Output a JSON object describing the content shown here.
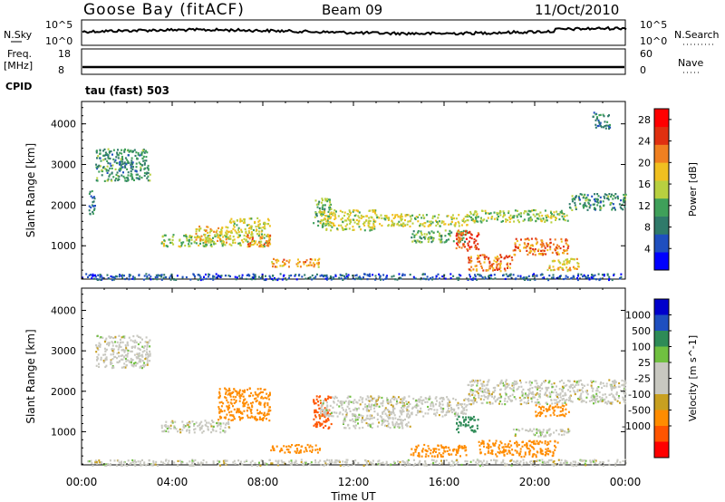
{
  "header": {
    "site": "Goose Bay (fitACF)",
    "beam": "Beam 09",
    "date": "11/Oct/2010"
  },
  "top_strip": {
    "left_label": "N.Sky",
    "right_label": "N.Search",
    "left_ticks": [
      "10^5",
      "10^0"
    ],
    "right_ticks": [
      "10^5",
      "10^0"
    ]
  },
  "freq_strip": {
    "left_label_1": "Freq.",
    "left_label_2": "[MHz]",
    "right_label": "Nave",
    "left_ticks": [
      "18",
      "8"
    ],
    "right_ticks": [
      "60",
      "0"
    ]
  },
  "cpid": {
    "label": "CPID",
    "value": "tau (fast) 503"
  },
  "colors": {
    "power": [
      "#0000ff",
      "#1f4fbf",
      "#2f7a6a",
      "#3fa05a",
      "#b8d040",
      "#f0c020",
      "#f08020",
      "#e03010",
      "#ff0000"
    ],
    "velocity": [
      "#ff0000",
      "#ff5500",
      "#ff8c00",
      "#c8a020",
      "#c8c8c0",
      "#c8c8c0",
      "#70c040",
      "#2e8b57",
      "#1f4fbf",
      "#0000cc"
    ]
  },
  "chart_data": [
    {
      "type": "heatmap",
      "title": "",
      "xlabel": "",
      "ylabel": "Slant Range [km]",
      "xlim": [
        "00:00",
        "24:00"
      ],
      "ylim": [
        180,
        4550
      ],
      "x_ticks": [
        "00:00",
        "04:00",
        "08:00",
        "12:00",
        "16:00",
        "20:00",
        "00:00"
      ],
      "y_ticks": [
        1000,
        2000,
        3000,
        4000
      ],
      "colorbar": {
        "label": "Power [dB]",
        "ticks": [
          4,
          8,
          12,
          16,
          20,
          24,
          28
        ],
        "range": [
          0,
          30
        ]
      },
      "regions": [
        {
          "t0": 0.3,
          "t1": 0.6,
          "r0": 1800,
          "r1": 2400,
          "value": 8
        },
        {
          "t0": 0.6,
          "t1": 3.0,
          "r0": 2600,
          "r1": 3400,
          "value": 10
        },
        {
          "t0": 3.5,
          "t1": 6.5,
          "r0": 1000,
          "r1": 1300,
          "value": 14
        },
        {
          "t0": 5.0,
          "t1": 6.5,
          "r0": 1100,
          "r1": 1500,
          "value": 18
        },
        {
          "t0": 6.5,
          "t1": 8.3,
          "r0": 1000,
          "r1": 1700,
          "value": 16
        },
        {
          "t0": 7.3,
          "t1": 8.3,
          "r0": 1000,
          "r1": 1300,
          "value": 22
        },
        {
          "t0": 8.3,
          "t1": 10.5,
          "r0": 500,
          "r1": 700,
          "value": 20
        },
        {
          "t0": 10.2,
          "t1": 11.0,
          "r0": 1500,
          "r1": 2200,
          "value": 12
        },
        {
          "t0": 10.5,
          "t1": 13.0,
          "r0": 1400,
          "r1": 1900,
          "value": 16
        },
        {
          "t0": 13.0,
          "t1": 17.0,
          "r0": 1500,
          "r1": 1800,
          "value": 16
        },
        {
          "t0": 14.5,
          "t1": 17.0,
          "r0": 1100,
          "r1": 1400,
          "value": 12
        },
        {
          "t0": 16.5,
          "t1": 17.5,
          "r0": 900,
          "r1": 1400,
          "value": 24
        },
        {
          "t0": 17.0,
          "t1": 19.0,
          "r0": 400,
          "r1": 800,
          "value": 22
        },
        {
          "t0": 17.0,
          "t1": 21.5,
          "r0": 1600,
          "r1": 1900,
          "value": 14
        },
        {
          "t0": 19.0,
          "t1": 21.5,
          "r0": 800,
          "r1": 1200,
          "value": 22
        },
        {
          "t0": 20.5,
          "t1": 22.0,
          "r0": 400,
          "r1": 700,
          "value": 18
        },
        {
          "t0": 21.5,
          "t1": 24.0,
          "r0": 1900,
          "r1": 2300,
          "value": 10
        },
        {
          "t0": 22.5,
          "t1": 23.3,
          "r0": 3900,
          "r1": 4300,
          "value": 8
        },
        {
          "t0": 0.0,
          "t1": 24.0,
          "r0": 180,
          "r1": 330,
          "value": 6
        }
      ]
    },
    {
      "type": "heatmap",
      "title": "",
      "xlabel": "Time UT",
      "ylabel": "Slant Range [km]",
      "xlim": [
        "00:00",
        "24:00"
      ],
      "ylim": [
        180,
        4550
      ],
      "x_ticks": [
        "00:00",
        "04:00",
        "08:00",
        "12:00",
        "16:00",
        "20:00",
        "00:00"
      ],
      "y_ticks": [
        1000,
        2000,
        3000,
        4000
      ],
      "colorbar": {
        "label": "Velocity [m s^-1]",
        "ticks": [
          1000,
          500,
          100,
          25,
          -25,
          -100,
          -500,
          -1000
        ]
      },
      "regions": [
        {
          "t0": 0.6,
          "t1": 3.0,
          "r0": 2600,
          "r1": 3400,
          "value": 0
        },
        {
          "t0": 3.5,
          "t1": 6.5,
          "r0": 1000,
          "r1": 1300,
          "value": 0
        },
        {
          "t0": 6.0,
          "t1": 8.3,
          "r0": 1300,
          "r1": 2100,
          "value": -300
        },
        {
          "t0": 8.3,
          "t1": 10.5,
          "r0": 500,
          "r1": 700,
          "value": -300
        },
        {
          "t0": 10.2,
          "t1": 11.0,
          "r0": 1100,
          "r1": 1900,
          "value": -600
        },
        {
          "t0": 10.5,
          "t1": 17.0,
          "r0": 1400,
          "r1": 1900,
          "value": 0
        },
        {
          "t0": 11.5,
          "t1": 14.5,
          "r0": 1100,
          "r1": 1400,
          "value": 0
        },
        {
          "t0": 14.5,
          "t1": 17.0,
          "r0": 400,
          "r1": 700,
          "value": -300
        },
        {
          "t0": 16.5,
          "t1": 17.5,
          "r0": 1000,
          "r1": 1400,
          "value": 150
        },
        {
          "t0": 17.5,
          "t1": 21.0,
          "r0": 400,
          "r1": 800,
          "value": -300
        },
        {
          "t0": 19.0,
          "t1": 21.5,
          "r0": 900,
          "r1": 1100,
          "value": 0
        },
        {
          "t0": 17.0,
          "t1": 24.0,
          "r0": 1700,
          "r1": 2300,
          "value": 0
        },
        {
          "t0": 20.0,
          "t1": 21.5,
          "r0": 1400,
          "r1": 1700,
          "value": -150
        },
        {
          "t0": 0.0,
          "t1": 24.0,
          "r0": 180,
          "r1": 330,
          "value": 0
        }
      ]
    }
  ]
}
